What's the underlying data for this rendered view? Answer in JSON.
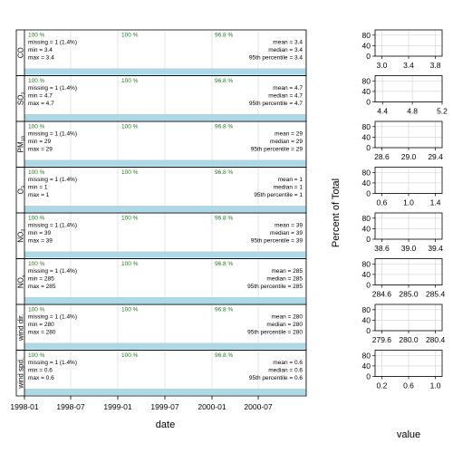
{
  "chart_data": [
    {
      "type": "summary-timeline",
      "xlabel": "date",
      "x_ticks": [
        "1998-01",
        "1998-07",
        "1999-01",
        "1999-07",
        "2000-01",
        "2000-07"
      ],
      "panels": [
        {
          "strip": "CO",
          "strip_sub": "",
          "data_capture": [
            "100 %",
            "100 %",
            "96.8 %"
          ],
          "missing": "missing = 1 (1.4%)",
          "min": "min = 3.4",
          "max": "max = 3.4",
          "mean": "mean = 3.4",
          "median": "median = 3.4",
          "p95": "95th percentile = 3.4"
        },
        {
          "strip": "SO",
          "strip_sub": "2",
          "data_capture": [
            "100 %",
            "100 %",
            "96.8 %"
          ],
          "missing": "missing = 1 (1.4%)",
          "min": "min = 4.7",
          "max": "max = 4.7",
          "mean": "mean = 4.7",
          "median": "median = 4.7",
          "p95": "95th percentile = 4.7"
        },
        {
          "strip": "PM",
          "strip_sub": "10",
          "data_capture": [
            "100 %",
            "100 %",
            "96.8 %"
          ],
          "missing": "missing = 1 (1.4%)",
          "min": "min = 29",
          "max": "max = 29",
          "mean": "mean = 29",
          "median": "median = 29",
          "p95": "95th percentile = 29"
        },
        {
          "strip": "O",
          "strip_sub": "3",
          "data_capture": [
            "100 %",
            "100 %",
            "96.8 %"
          ],
          "missing": "missing = 1 (1.4%)",
          "min": "min = 1",
          "max": "max = 1",
          "mean": "mean = 1",
          "median": "median = 1",
          "p95": "95th percentile = 1"
        },
        {
          "strip": "NO",
          "strip_sub": "2",
          "data_capture": [
            "100 %",
            "100 %",
            "96.8 %"
          ],
          "missing": "missing = 1 (1.4%)",
          "min": "min = 39",
          "max": "max = 39",
          "mean": "mean = 39",
          "median": "median = 39",
          "p95": "95th percentile = 39"
        },
        {
          "strip": "NO",
          "strip_sub": "x",
          "data_capture": [
            "100 %",
            "100 %",
            "96.8 %"
          ],
          "missing": "missing = 1 (1.4%)",
          "min": "min = 285",
          "max": "max = 285",
          "mean": "mean = 285",
          "median": "median = 285",
          "p95": "95th percentile = 285"
        },
        {
          "strip": "wind dir.",
          "strip_sub": "",
          "data_capture": [
            "100 %",
            "100 %",
            "96.8 %"
          ],
          "missing": "missing = 1 (1.4%)",
          "min": "min = 280",
          "max": "max = 280",
          "mean": "mean = 280",
          "median": "median = 280",
          "p95": "95th percentile = 280"
        },
        {
          "strip": "wind spd.",
          "strip_sub": "",
          "data_capture": [
            "100 %",
            "100 %",
            "96.8 %"
          ],
          "missing": "missing = 1 (1.4%)",
          "min": "min = 0.6",
          "max": "max = 0.6",
          "mean": "mean = 0.6",
          "median": "median = 0.6",
          "p95": "95th percentile = 0.6"
        }
      ]
    },
    {
      "type": "histogram",
      "xlabel": "value",
      "ylabel": "Percent of Total",
      "y_ticks": [
        "0",
        "40",
        "80"
      ],
      "ylim": [
        0,
        100
      ],
      "panels": [
        {
          "x_ticks": [
            "3.0",
            "3.4",
            "3.8"
          ],
          "xlim": [
            2.9,
            3.9
          ]
        },
        {
          "x_ticks": [
            "4.4",
            "4.8",
            "5.2"
          ],
          "xlim": [
            4.3,
            5.2
          ]
        },
        {
          "x_ticks": [
            "28.6",
            "29.0",
            "29.4"
          ],
          "xlim": [
            28.5,
            29.5
          ]
        },
        {
          "x_ticks": [
            "0.6",
            "1.0",
            "1.4"
          ],
          "xlim": [
            0.5,
            1.5
          ]
        },
        {
          "x_ticks": [
            "38.6",
            "39.0",
            "39.4"
          ],
          "xlim": [
            38.5,
            39.5
          ]
        },
        {
          "x_ticks": [
            "284.6",
            "285.0",
            "285.4"
          ],
          "xlim": [
            284.5,
            285.5
          ]
        },
        {
          "x_ticks": [
            "279.6",
            "280.0",
            "280.4"
          ],
          "xlim": [
            279.5,
            280.5
          ]
        },
        {
          "x_ticks": [
            "0.2",
            "0.6",
            "1.0"
          ],
          "xlim": [
            0.1,
            1.1
          ]
        }
      ]
    }
  ]
}
